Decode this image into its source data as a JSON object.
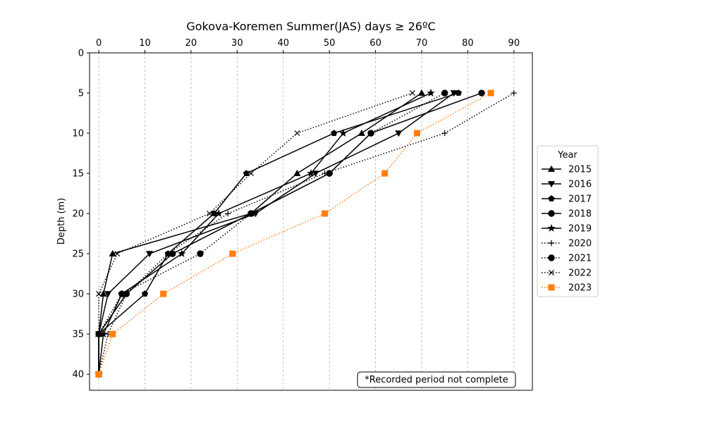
{
  "chart_data": {
    "type": "line",
    "title": "Gokova-Koremen Summer(JAS) days ≥ 26ºC",
    "xlabel": "",
    "ylabel": "Depth (m)",
    "x_axis_position": "top",
    "y_inverted": true,
    "xlim": [
      -2,
      94
    ],
    "ylim": [
      0,
      42
    ],
    "xticks": [
      0,
      10,
      20,
      30,
      40,
      50,
      60,
      70,
      80,
      90
    ],
    "yticks": [
      0,
      5,
      10,
      15,
      20,
      25,
      30,
      35,
      40
    ],
    "grid": "vertical dashed",
    "legend_title": "Year",
    "legend_position": "center-right outside",
    "annotation": "*Recorded period not complete",
    "depths": [
      5,
      10,
      15,
      20,
      25,
      30,
      35,
      40
    ],
    "series": [
      {
        "name": "2015",
        "marker": "triangle-up",
        "dash": "solid",
        "color": "#000000",
        "x": [
          70,
          57,
          43,
          33,
          3,
          1,
          0,
          0
        ]
      },
      {
        "name": "2016",
        "marker": "triangle-down",
        "dash": "solid",
        "color": "#000000",
        "x": [
          77,
          65,
          47,
          34,
          11,
          2,
          0,
          0
        ]
      },
      {
        "name": "2017",
        "marker": "pentagon",
        "dash": "solid",
        "color": "#000000",
        "x": [
          78,
          51,
          32,
          25,
          15,
          10,
          0,
          0
        ]
      },
      {
        "name": "2018",
        "marker": "circle",
        "dash": "solid",
        "color": "#000000",
        "x": [
          83,
          59,
          50,
          33,
          16,
          6,
          0,
          0
        ]
      },
      {
        "name": "2019",
        "marker": "star",
        "dash": "solid",
        "color": "#000000",
        "x": [
          72,
          53,
          46,
          26,
          18,
          5,
          1,
          0
        ]
      },
      {
        "name": "2020",
        "marker": "plus",
        "dash": "dotted",
        "color": "#000000",
        "x": [
          90,
          75,
          49,
          28,
          15,
          6,
          2,
          0
        ]
      },
      {
        "name": "2021",
        "marker": "circle",
        "dash": "dotted",
        "color": "#000000",
        "x": [
          75,
          59,
          50,
          33,
          22,
          5,
          0,
          0
        ]
      },
      {
        "name": "2022",
        "marker": "x",
        "dash": "dotted",
        "color": "#000000",
        "x": [
          68,
          43,
          33,
          24,
          4,
          0,
          0,
          0
        ]
      },
      {
        "name": "2023",
        "marker": "square",
        "dash": "dotted",
        "color": "#ff7f0e",
        "x": [
          85,
          69,
          62,
          49,
          29,
          14,
          3,
          0
        ]
      }
    ]
  }
}
